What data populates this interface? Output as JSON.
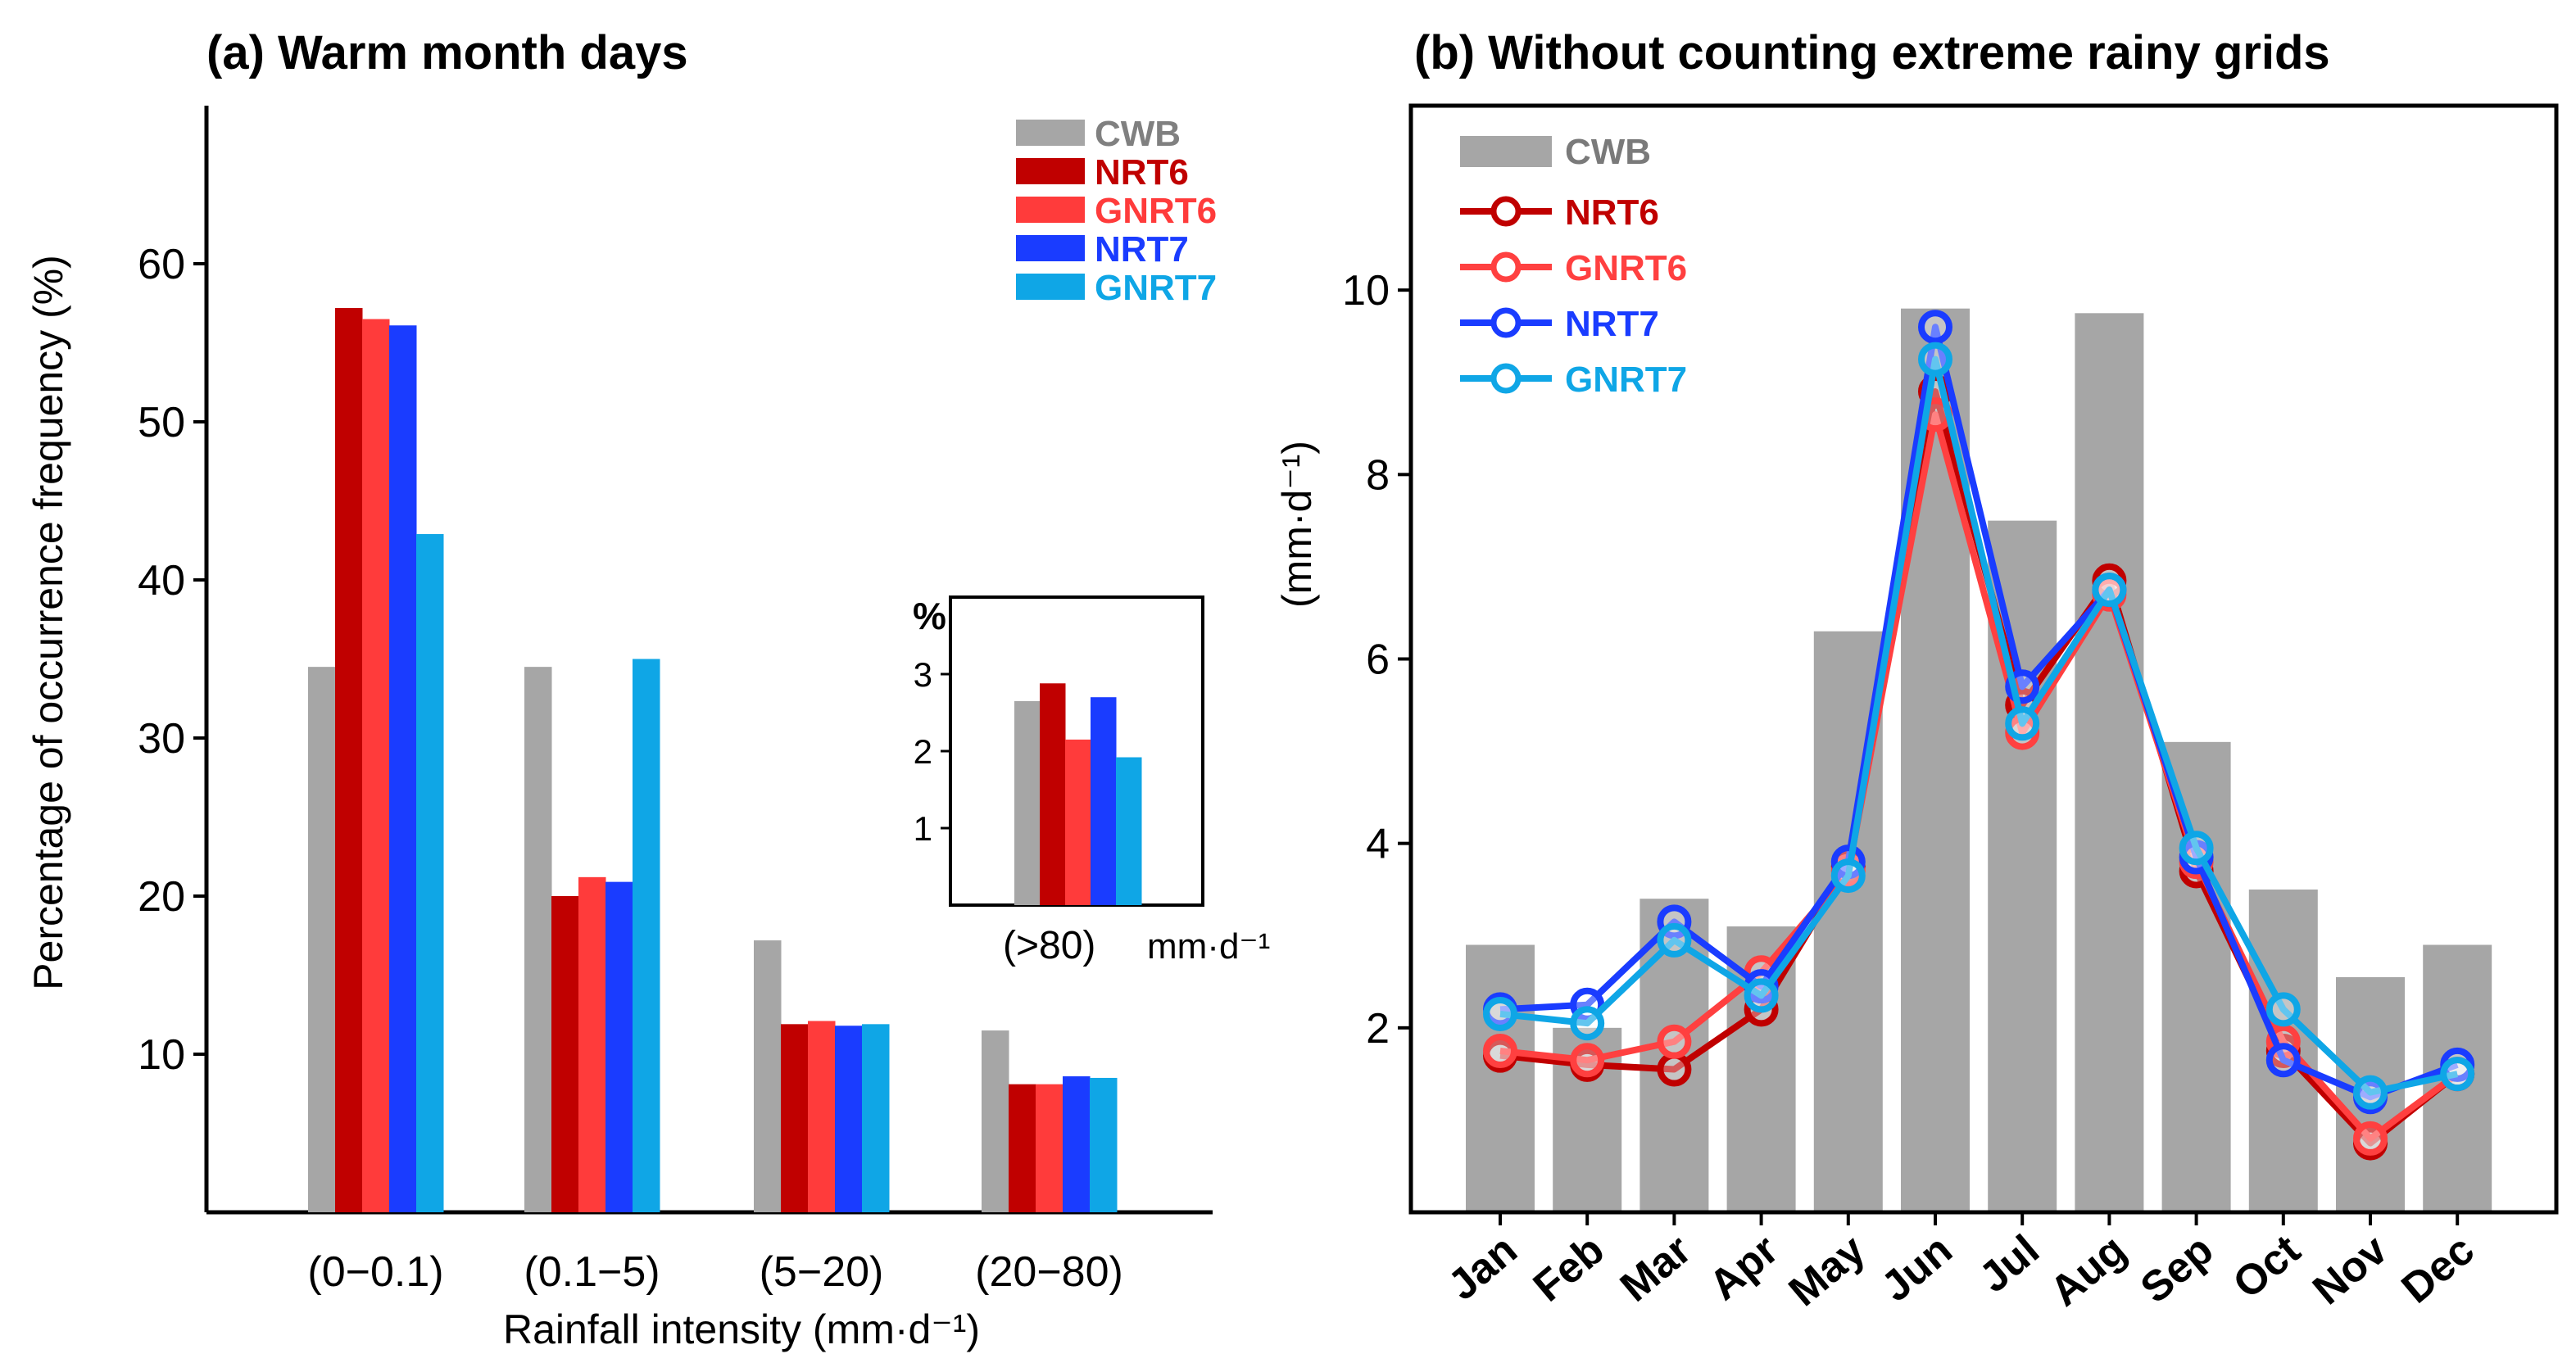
{
  "chart_data": [
    {
      "type": "bar",
      "title": "(a) Warm month days",
      "xlabel": "Rainfall intensity (mm·d⁻¹)",
      "ylabel": "Percentage of occurrence frequency (%)",
      "ylim": [
        0,
        70
      ],
      "yticks": [
        "10",
        "20",
        "30",
        "40",
        "50",
        "60"
      ],
      "categories": [
        "(0−0.1)",
        "(0.1−5)",
        "(5−20)",
        "(20−80)"
      ],
      "series": [
        {
          "name": "CWB",
          "color": "#a6a6a6",
          "values": [
            34.5,
            34.5,
            17.2,
            11.5
          ]
        },
        {
          "name": "NRT6",
          "color": "#c00000",
          "values": [
            57.2,
            20.0,
            11.9,
            8.1
          ]
        },
        {
          "name": "GNRT6",
          "color": "#ff3b3b",
          "values": [
            56.5,
            21.2,
            12.1,
            8.1
          ]
        },
        {
          "name": "NRT7",
          "color": "#1a3cff",
          "values": [
            56.1,
            20.9,
            11.8,
            8.6
          ]
        },
        {
          "name": "GNRT7",
          "color": "#0fa6e6",
          "values": [
            42.9,
            35.0,
            11.9,
            8.5
          ]
        }
      ],
      "legend_position": "top-right",
      "inset": {
        "type": "bar",
        "title": "%",
        "category": "(>80)",
        "unit": "mm·d⁻¹",
        "ylim": [
          0,
          4
        ],
        "yticks": [
          "1",
          "2",
          "3"
        ],
        "values": [
          2.65,
          2.88,
          2.15,
          2.7,
          1.92
        ]
      }
    },
    {
      "type": "bar+line",
      "title": "(b) Without counting extreme rainy grids",
      "ylabel": "(mm·d⁻¹)",
      "ylim": [
        0,
        12
      ],
      "yticks": [
        "2",
        "4",
        "6",
        "8",
        "10"
      ],
      "categories": [
        "Jan",
        "Feb",
        "Mar",
        "Apr",
        "May",
        "Jun",
        "Jul",
        "Aug",
        "Sep",
        "Oct",
        "Nov",
        "Dec"
      ],
      "bars": {
        "name": "CWB",
        "color": "#a6a6a6",
        "values": [
          2.9,
          2.0,
          3.4,
          3.1,
          6.3,
          9.8,
          7.5,
          9.75,
          5.1,
          3.5,
          2.55,
          2.9
        ]
      },
      "lines": [
        {
          "name": "NRT6",
          "color": "#c00000",
          "values": [
            1.7,
            1.6,
            1.55,
            2.2,
            3.75,
            8.9,
            5.5,
            6.85,
            3.7,
            1.75,
            0.75,
            1.5
          ]
        },
        {
          "name": "GNRT6",
          "color": "#ff4040",
          "values": [
            1.75,
            1.65,
            1.85,
            2.6,
            3.7,
            8.65,
            5.2,
            6.7,
            3.8,
            1.85,
            0.8,
            1.5
          ]
        },
        {
          "name": "NRT7",
          "color": "#1a3cff",
          "values": [
            2.2,
            2.25,
            3.15,
            2.45,
            3.8,
            9.6,
            5.7,
            6.75,
            3.85,
            1.65,
            1.25,
            1.6
          ]
        },
        {
          "name": "GNRT7",
          "color": "#0fa6e6",
          "values": [
            2.15,
            2.05,
            2.95,
            2.35,
            3.65,
            9.25,
            5.3,
            6.75,
            3.95,
            2.2,
            1.3,
            1.5
          ]
        }
      ],
      "legend_position": "top-left"
    }
  ]
}
